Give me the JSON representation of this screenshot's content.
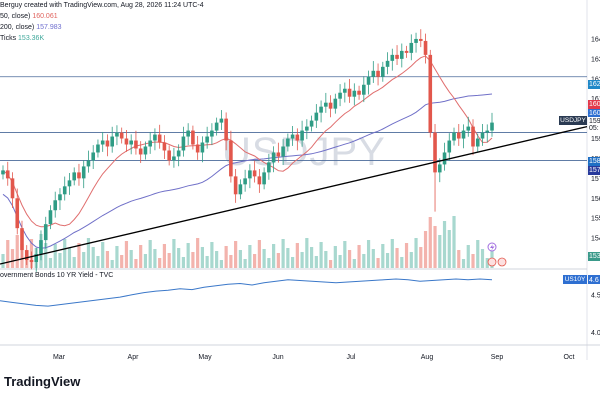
{
  "header": {
    "title": "Berguy created with TradingView.com, Aug 28, 2026 11:24 UTC-4",
    "ma50_label": "50, close)",
    "ma50_value": "160.061",
    "ma200_label": "200, close)",
    "ma200_value": "157.983",
    "vol_label": "Ticks",
    "vol_value": "153.36K"
  },
  "symbol": "USDJPY",
  "watermark": "USDJPY",
  "yield_panel": {
    "label": "overnment Bonds 10 YR Yield - TVC",
    "badge": "US10Y",
    "value": "4.6"
  },
  "price_tags": [
    {
      "text": "162",
      "color": "#1e88c8"
    },
    {
      "text": "160",
      "color": "#e3394b"
    },
    {
      "text": "160",
      "color": "#2e6fd1"
    },
    {
      "text": "159",
      "color": "#ffffff"
    },
    {
      "text": "05:",
      "color": "#ffffff"
    },
    {
      "text": "158",
      "color": "#1e6fc4"
    },
    {
      "text": "157",
      "color": "#283a9c"
    },
    {
      "text": "153",
      "color": "#3a9a8a"
    }
  ],
  "colors": {
    "up": "#2f9c85",
    "down": "#e2574c",
    "ma50": "#e06e6e",
    "ma200": "#7070c8",
    "trendline": "#000000",
    "hline": "#4a6a9a",
    "yield": "#3b78c9",
    "volume_up": "#a8d8cf",
    "volume_down": "#f3b3ad"
  },
  "logo": "TradingView",
  "chart_data": {
    "type": "candlestick",
    "x_axis_labels": [
      "Mar",
      "Apr",
      "May",
      "Jun",
      "Jul",
      "Aug",
      "Sep",
      "Oct"
    ],
    "y_ticks": [
      "164",
      "163",
      "162",
      "161",
      "160",
      "159",
      "158",
      "157",
      "156",
      "155",
      "154",
      "153"
    ],
    "yield_ticks": [
      "4.50",
      "4.00"
    ],
    "horizontal_levels": [
      162.1,
      159.3,
      157.9
    ],
    "trendline": {
      "from": [
        0,
        152.7
      ],
      "to": [
        1,
        159.6
      ]
    },
    "close_series": [
      157.4,
      157.0,
      156.0,
      154.5,
      153.4,
      152.9,
      152.8,
      153.2,
      153.9,
      154.7,
      155.4,
      155.9,
      156.2,
      156.6,
      156.9,
      157.3,
      157.0,
      157.6,
      157.9,
      158.3,
      158.7,
      158.9,
      158.6,
      159.1,
      159.3,
      159.0,
      158.7,
      158.9,
      158.5,
      158.2,
      158.6,
      158.9,
      159.2,
      158.8,
      158.4,
      157.9,
      158.1,
      158.4,
      159.1,
      159.4,
      158.7,
      158.3,
      158.8,
      159.1,
      159.4,
      159.8,
      160.0,
      158.9,
      157.1,
      156.2,
      156.7,
      157.0,
      157.4,
      157.1,
      156.7,
      157.3,
      157.8,
      158.3,
      158.1,
      158.6,
      159.0,
      159.2,
      158.9,
      159.4,
      159.6,
      159.9,
      160.3,
      160.6,
      160.8,
      160.5,
      161.0,
      161.3,
      161.5,
      161.1,
      161.4,
      161.2,
      161.7,
      162.1,
      162.4,
      162.1,
      162.6,
      162.9,
      163.2,
      163.0,
      163.4,
      163.3,
      163.8,
      164.0,
      163.9,
      163.2,
      159.3,
      157.3,
      157.7,
      158.3,
      158.9,
      159.3,
      159.0,
      159.4,
      159.6,
      158.6,
      159.0,
      159.3,
      159.4,
      159.8
    ],
    "ma50_series_label": "MA 50 close",
    "ma200_series_label": "MA 200 close",
    "yield_series": [
      4.42,
      4.4,
      4.38,
      4.36,
      4.35,
      4.37,
      4.39,
      4.41,
      4.43,
      4.45,
      4.47,
      4.5,
      4.53,
      4.55,
      4.56,
      4.58,
      4.57,
      4.6,
      4.62,
      4.64,
      4.65,
      4.63,
      4.66,
      4.68,
      4.7,
      4.69,
      4.68,
      4.67,
      4.66,
      4.67,
      4.68,
      4.69,
      4.7,
      4.71,
      4.7,
      4.68,
      4.69,
      4.7,
      4.71,
      4.7,
      4.71,
      4.7
    ]
  }
}
